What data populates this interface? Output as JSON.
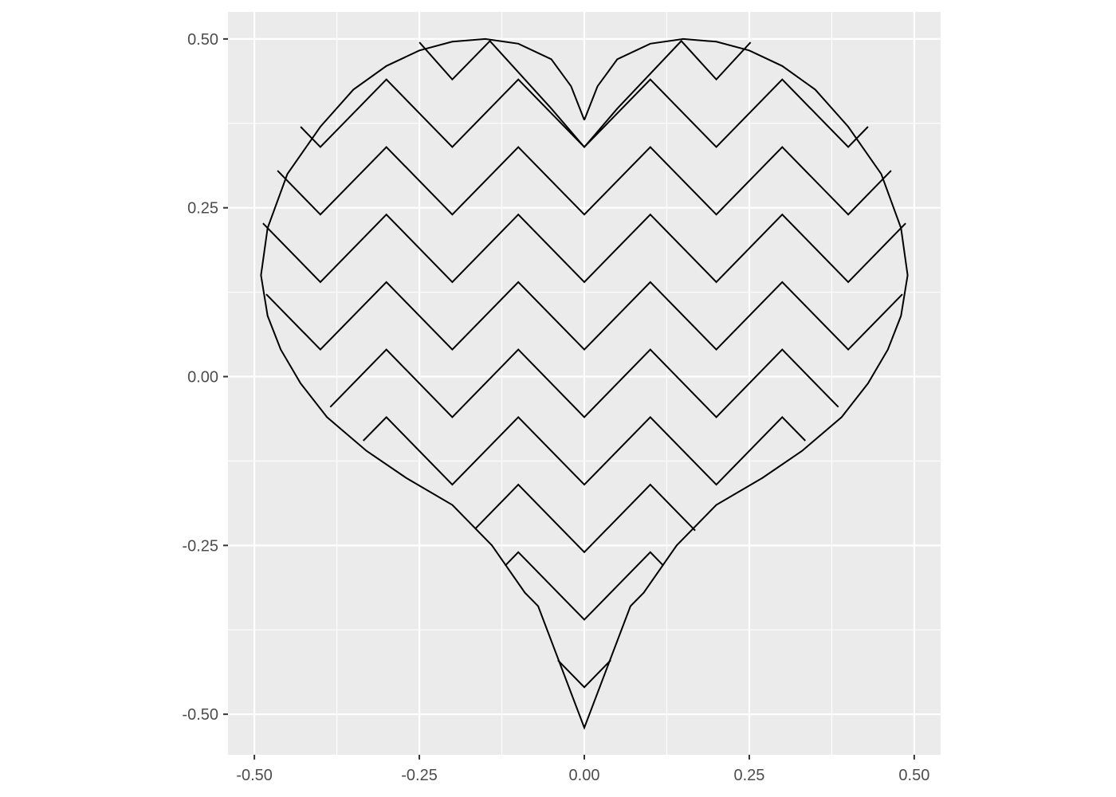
{
  "chart_data": {
    "type": "line",
    "title": "",
    "xlabel": "",
    "ylabel": "",
    "xlim": [
      -0.54,
      0.54
    ],
    "ylim": [
      -0.56,
      0.54
    ],
    "grid": true,
    "x_ticks": [
      -0.5,
      -0.25,
      0.0,
      0.25,
      0.5
    ],
    "x_tick_labels": [
      "-0.50",
      "-0.25",
      "0.00",
      "0.25",
      "0.50"
    ],
    "y_ticks": [
      -0.5,
      -0.25,
      0.0,
      0.25,
      0.5
    ],
    "y_tick_labels": [
      "-0.50",
      "-0.25",
      "0.00",
      "0.25",
      "0.50"
    ],
    "colors": {
      "panel": "#ebebeb",
      "grid": "#ffffff",
      "line": "#000000",
      "tick": "#333333",
      "tick_label": "#4d4d4d"
    },
    "series": [
      {
        "name": "heart-outline",
        "x": [
          0.0,
          0.02,
          0.05,
          0.1,
          0.15,
          0.2,
          0.25,
          0.3,
          0.35,
          0.4,
          0.45,
          0.48,
          0.49,
          0.48,
          0.46,
          0.43,
          0.39,
          0.33,
          0.27,
          0.2,
          0.14,
          0.09,
          0.07,
          0.0,
          -0.07,
          -0.09,
          -0.14,
          -0.2,
          -0.27,
          -0.33,
          -0.39,
          -0.43,
          -0.46,
          -0.48,
          -0.49,
          -0.48,
          -0.45,
          -0.4,
          -0.35,
          -0.3,
          -0.25,
          -0.2,
          -0.15,
          -0.1,
          -0.05,
          -0.02,
          0.0
        ],
        "y": [
          0.38,
          0.43,
          0.47,
          0.493,
          0.5,
          0.496,
          0.483,
          0.46,
          0.425,
          0.37,
          0.3,
          0.22,
          0.15,
          0.09,
          0.04,
          -0.01,
          -0.06,
          -0.11,
          -0.15,
          -0.19,
          -0.25,
          -0.32,
          -0.34,
          -0.52,
          -0.34,
          -0.32,
          -0.25,
          -0.19,
          -0.15,
          -0.11,
          -0.06,
          -0.01,
          0.04,
          0.09,
          0.15,
          0.22,
          0.3,
          0.37,
          0.425,
          0.46,
          0.483,
          0.496,
          0.5,
          0.493,
          0.47,
          0.43,
          0.38
        ]
      },
      {
        "name": "zigzag-row-1",
        "x": [
          -0.25,
          -0.2,
          -0.143,
          -0.05,
          0.0,
          0.05,
          0.147,
          0.2,
          0.252
        ],
        "y": [
          0.495,
          0.44,
          0.497,
          0.397,
          0.34,
          0.397,
          0.497,
          0.44,
          0.495
        ]
      },
      {
        "name": "zigzag-row-1-sides",
        "x": [
          -0.43,
          -0.4,
          -0.3,
          -0.2,
          -0.1,
          0.0,
          0.1,
          0.2,
          0.3,
          0.4,
          0.43
        ],
        "y": [
          0.37,
          0.34,
          0.44,
          0.34,
          0.44,
          0.34,
          0.44,
          0.34,
          0.44,
          0.34,
          0.37
        ]
      },
      {
        "name": "zigzag-row-2",
        "x": [
          -0.465,
          -0.4,
          -0.3,
          -0.2,
          -0.1,
          0.0,
          0.1,
          0.2,
          0.3,
          0.4,
          0.465
        ],
        "y": [
          0.305,
          0.24,
          0.34,
          0.24,
          0.34,
          0.24,
          0.34,
          0.24,
          0.34,
          0.24,
          0.305
        ]
      },
      {
        "name": "zigzag-row-3",
        "x": [
          -0.487,
          -0.4,
          -0.3,
          -0.2,
          -0.1,
          0.0,
          0.1,
          0.2,
          0.3,
          0.4,
          0.487
        ],
        "y": [
          0.227,
          0.14,
          0.24,
          0.14,
          0.24,
          0.14,
          0.24,
          0.14,
          0.24,
          0.14,
          0.227
        ]
      },
      {
        "name": "zigzag-row-4",
        "x": [
          -0.482,
          -0.4,
          -0.3,
          -0.2,
          -0.1,
          0.0,
          0.1,
          0.2,
          0.3,
          0.4,
          0.482
        ],
        "y": [
          0.122,
          0.04,
          0.14,
          0.04,
          0.14,
          0.04,
          0.14,
          0.04,
          0.14,
          0.04,
          0.122
        ]
      },
      {
        "name": "zigzag-row-5",
        "x": [
          -0.385,
          -0.3,
          -0.2,
          -0.1,
          0.0,
          0.1,
          0.2,
          0.3,
          0.385
        ],
        "y": [
          -0.045,
          0.04,
          -0.06,
          0.04,
          -0.06,
          0.04,
          -0.06,
          0.04,
          -0.045
        ]
      },
      {
        "name": "zigzag-row-6",
        "x": [
          -0.335,
          -0.3,
          -0.2,
          -0.1,
          0.0,
          0.1,
          0.2,
          0.3,
          0.335
        ],
        "y": [
          -0.095,
          -0.06,
          -0.16,
          -0.06,
          -0.16,
          -0.06,
          -0.16,
          -0.06,
          -0.095
        ]
      },
      {
        "name": "zigzag-row-7",
        "x": [
          -0.165,
          -0.1,
          0.0,
          0.1,
          0.168
        ],
        "y": [
          -0.225,
          -0.16,
          -0.26,
          -0.16,
          -0.228
        ]
      },
      {
        "name": "zigzag-row-8",
        "x": [
          -0.12,
          -0.1,
          0.0,
          0.1,
          0.12
        ],
        "y": [
          -0.28,
          -0.26,
          -0.36,
          -0.26,
          -0.28
        ]
      },
      {
        "name": "zigzag-row-9",
        "x": [
          -0.04,
          0.0,
          0.04
        ],
        "y": [
          -0.42,
          -0.46,
          -0.42
        ]
      }
    ]
  }
}
